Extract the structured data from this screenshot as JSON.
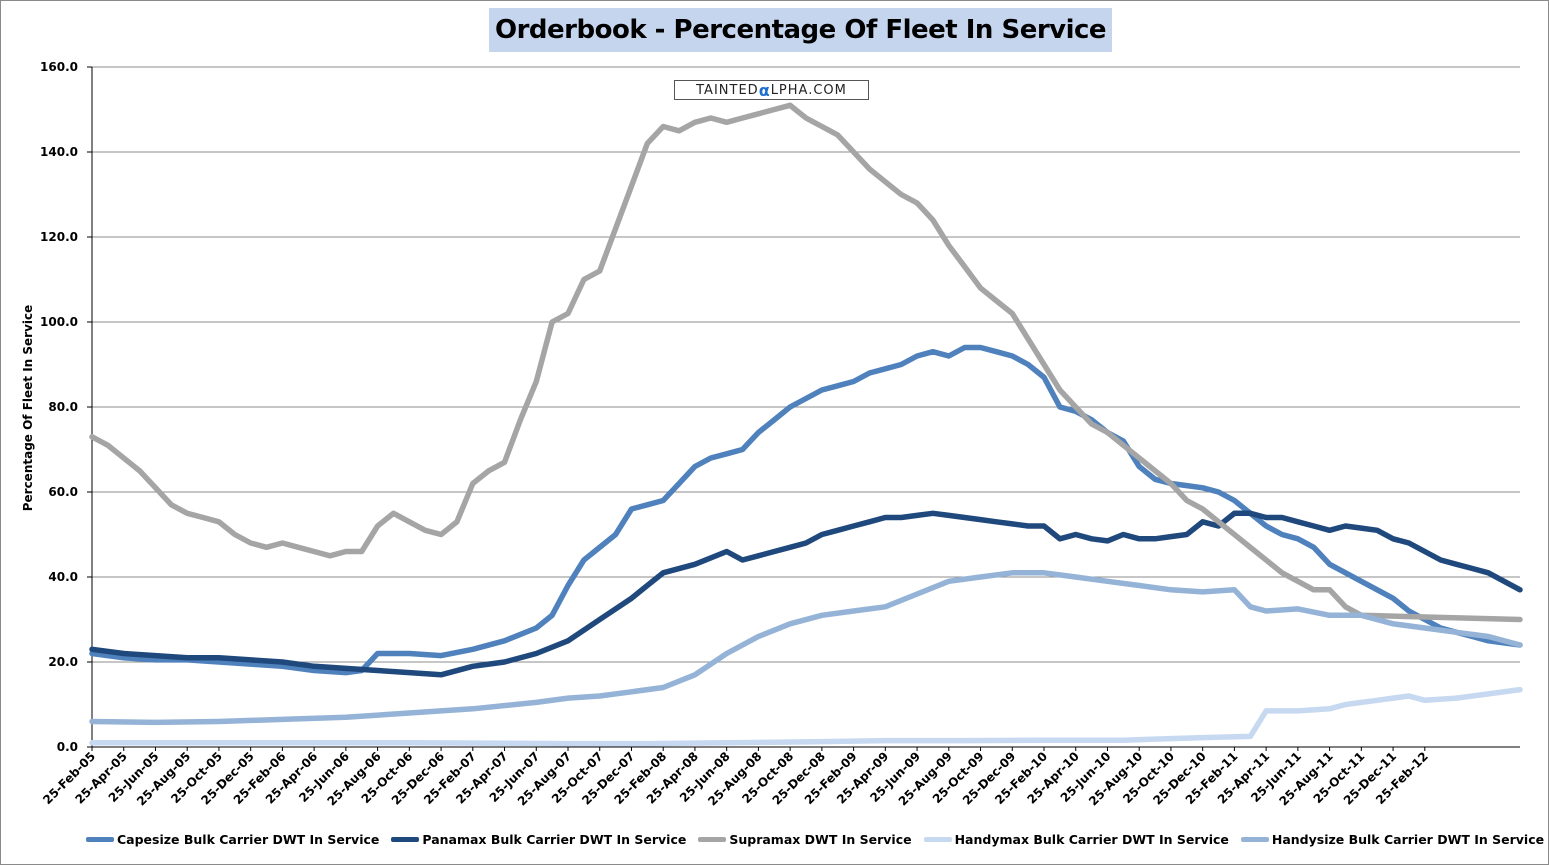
{
  "chart_data": {
    "type": "line",
    "title": "Orderbook - Percentage Of Fleet In Service",
    "watermark": "TAINTEDALPHA.COM",
    "xlabel": "",
    "ylabel": "Percentage Of Fleet In Service",
    "ylim": [
      0,
      160
    ],
    "yticks": [
      "0.0",
      "20.0",
      "40.0",
      "60.0",
      "80.0",
      "100.0",
      "120.0",
      "140.0",
      "160.0"
    ],
    "grid": true,
    "legend_position": "bottom",
    "x_ticks": [
      "25-Feb-05",
      "25-Apr-05",
      "25-Jun-05",
      "25-Aug-05",
      "25-Oct-05",
      "25-Dec-05",
      "25-Feb-06",
      "25-Apr-06",
      "25-Jun-06",
      "25-Aug-06",
      "25-Oct-06",
      "25-Dec-06",
      "25-Feb-07",
      "25-Apr-07",
      "25-Jun-07",
      "25-Aug-07",
      "25-Oct-07",
      "25-Dec-07",
      "25-Feb-08",
      "25-Apr-08",
      "25-Jun-08",
      "25-Aug-08",
      "25-Oct-08",
      "25-Dec-08",
      "25-Feb-09",
      "25-Apr-09",
      "25-Jun-09",
      "25-Aug-09",
      "25-Oct-09",
      "25-Dec-09",
      "25-Feb-10",
      "25-Apr-10",
      "25-Jun-10",
      "25-Aug-10",
      "25-Oct-10",
      "25-Dec-10",
      "25-Feb-11",
      "25-Apr-11",
      "25-Jun-11",
      "25-Aug-11",
      "25-Oct-11",
      "25-Dec-11",
      "25-Feb-12"
    ],
    "x_end_month": 86,
    "series": [
      {
        "name": "Capesize Bulk Carrier DWT In Service",
        "color": "#4f81bd",
        "points": [
          [
            0,
            22
          ],
          [
            2,
            21
          ],
          [
            4,
            20.5
          ],
          [
            6,
            20.5
          ],
          [
            8,
            20
          ],
          [
            10,
            19.5
          ],
          [
            12,
            19
          ],
          [
            14,
            18
          ],
          [
            16,
            17.5
          ],
          [
            17,
            18
          ],
          [
            18,
            22
          ],
          [
            20,
            22
          ],
          [
            22,
            21.5
          ],
          [
            24,
            23
          ],
          [
            26,
            25
          ],
          [
            28,
            28
          ],
          [
            29,
            31
          ],
          [
            30,
            38
          ],
          [
            31,
            44
          ],
          [
            32,
            47
          ],
          [
            33,
            50
          ],
          [
            34,
            56
          ],
          [
            35,
            57
          ],
          [
            36,
            58
          ],
          [
            37,
            62
          ],
          [
            38,
            66
          ],
          [
            39,
            68
          ],
          [
            40,
            69
          ],
          [
            41,
            70
          ],
          [
            42,
            74
          ],
          [
            43,
            77
          ],
          [
            44,
            80
          ],
          [
            45,
            82
          ],
          [
            46,
            84
          ],
          [
            47,
            85
          ],
          [
            48,
            86
          ],
          [
            49,
            88
          ],
          [
            50,
            89
          ],
          [
            51,
            90
          ],
          [
            52,
            92
          ],
          [
            53,
            93
          ],
          [
            54,
            92
          ],
          [
            55,
            94
          ],
          [
            56,
            94
          ],
          [
            57,
            93
          ],
          [
            58,
            92
          ],
          [
            59,
            90
          ],
          [
            60,
            87
          ],
          [
            61,
            80
          ],
          [
            62,
            79
          ],
          [
            63,
            77
          ],
          [
            64,
            74
          ],
          [
            65,
            72
          ],
          [
            66,
            66
          ],
          [
            67,
            63
          ],
          [
            68,
            62
          ],
          [
            69,
            61.5
          ],
          [
            70,
            61
          ],
          [
            71,
            60
          ],
          [
            72,
            58
          ],
          [
            73,
            55
          ],
          [
            74,
            52
          ],
          [
            75,
            50
          ],
          [
            76,
            49
          ],
          [
            77,
            47
          ],
          [
            78,
            43
          ],
          [
            79,
            41
          ],
          [
            80,
            39
          ],
          [
            81,
            37
          ],
          [
            82,
            35
          ],
          [
            83,
            32
          ],
          [
            84,
            30
          ],
          [
            85,
            28
          ],
          [
            86,
            27
          ],
          [
            87,
            26
          ],
          [
            88,
            25
          ],
          [
            89,
            24.5
          ],
          [
            90,
            24
          ]
        ]
      },
      {
        "name": "Panamax Bulk Carrier DWT In Service",
        "color": "#1f497d",
        "points": [
          [
            0,
            23
          ],
          [
            2,
            22
          ],
          [
            4,
            21.5
          ],
          [
            6,
            21
          ],
          [
            8,
            21
          ],
          [
            10,
            20.5
          ],
          [
            12,
            20
          ],
          [
            14,
            19
          ],
          [
            16,
            18.5
          ],
          [
            18,
            18
          ],
          [
            20,
            17.5
          ],
          [
            22,
            17
          ],
          [
            24,
            19
          ],
          [
            26,
            20
          ],
          [
            28,
            22
          ],
          [
            30,
            25
          ],
          [
            32,
            30
          ],
          [
            34,
            35
          ],
          [
            35,
            38
          ],
          [
            36,
            41
          ],
          [
            38,
            43
          ],
          [
            40,
            46
          ],
          [
            41,
            44
          ],
          [
            42,
            45
          ],
          [
            43,
            46
          ],
          [
            44,
            47
          ],
          [
            45,
            48
          ],
          [
            46,
            50
          ],
          [
            47,
            51
          ],
          [
            48,
            52
          ],
          [
            49,
            53
          ],
          [
            50,
            54
          ],
          [
            51,
            54
          ],
          [
            52,
            54.5
          ],
          [
            53,
            55
          ],
          [
            54,
            54.5
          ],
          [
            55,
            54
          ],
          [
            56,
            53.5
          ],
          [
            57,
            53
          ],
          [
            58,
            52.5
          ],
          [
            59,
            52
          ],
          [
            60,
            52
          ],
          [
            61,
            49
          ],
          [
            62,
            50
          ],
          [
            63,
            49
          ],
          [
            64,
            48.5
          ],
          [
            65,
            50
          ],
          [
            66,
            49
          ],
          [
            67,
            49
          ],
          [
            68,
            49.5
          ],
          [
            69,
            50
          ],
          [
            70,
            53
          ],
          [
            71,
            52
          ],
          [
            72,
            55
          ],
          [
            73,
            55
          ],
          [
            74,
            54
          ],
          [
            75,
            54
          ],
          [
            76,
            53
          ],
          [
            77,
            52
          ],
          [
            78,
            51
          ],
          [
            79,
            52
          ],
          [
            80,
            51.5
          ],
          [
            81,
            51
          ],
          [
            82,
            49
          ],
          [
            83,
            48
          ],
          [
            84,
            46
          ],
          [
            85,
            44
          ],
          [
            86,
            43
          ],
          [
            87,
            42
          ],
          [
            88,
            41
          ],
          [
            89,
            39
          ],
          [
            90,
            37
          ]
        ]
      },
      {
        "name": "Supramax DWT In Service",
        "color": "#a5a5a5",
        "points": [
          [
            0,
            73
          ],
          [
            1,
            71
          ],
          [
            2,
            68
          ],
          [
            3,
            65
          ],
          [
            4,
            61
          ],
          [
            5,
            57
          ],
          [
            6,
            55
          ],
          [
            7,
            54
          ],
          [
            8,
            53
          ],
          [
            9,
            50
          ],
          [
            10,
            48
          ],
          [
            11,
            47
          ],
          [
            12,
            48
          ],
          [
            13,
            47
          ],
          [
            14,
            46
          ],
          [
            15,
            45
          ],
          [
            16,
            46
          ],
          [
            17,
            46
          ],
          [
            18,
            52
          ],
          [
            19,
            55
          ],
          [
            20,
            53
          ],
          [
            21,
            51
          ],
          [
            22,
            50
          ],
          [
            23,
            53
          ],
          [
            24,
            62
          ],
          [
            25,
            65
          ],
          [
            26,
            67
          ],
          [
            27,
            77
          ],
          [
            28,
            86
          ],
          [
            29,
            100
          ],
          [
            30,
            102
          ],
          [
            31,
            110
          ],
          [
            32,
            112
          ],
          [
            33,
            122
          ],
          [
            34,
            132
          ],
          [
            35,
            142
          ],
          [
            36,
            146
          ],
          [
            37,
            145
          ],
          [
            38,
            147
          ],
          [
            39,
            148
          ],
          [
            40,
            147
          ],
          [
            41,
            148
          ],
          [
            42,
            149
          ],
          [
            43,
            150
          ],
          [
            44,
            151
          ],
          [
            45,
            148
          ],
          [
            46,
            146
          ],
          [
            47,
            144
          ],
          [
            48,
            140
          ],
          [
            49,
            136
          ],
          [
            50,
            133
          ],
          [
            51,
            130
          ],
          [
            52,
            128
          ],
          [
            53,
            124
          ],
          [
            54,
            118
          ],
          [
            55,
            113
          ],
          [
            56,
            108
          ],
          [
            57,
            105
          ],
          [
            58,
            102
          ],
          [
            59,
            96
          ],
          [
            60,
            90
          ],
          [
            61,
            84
          ],
          [
            62,
            80
          ],
          [
            63,
            76
          ],
          [
            64,
            74
          ],
          [
            65,
            71
          ],
          [
            66,
            68
          ],
          [
            67,
            65
          ],
          [
            68,
            62
          ],
          [
            69,
            58
          ],
          [
            70,
            56
          ],
          [
            71,
            53
          ],
          [
            72,
            50
          ],
          [
            73,
            47
          ],
          [
            74,
            44
          ],
          [
            75,
            41
          ],
          [
            76,
            39
          ],
          [
            77,
            37
          ],
          [
            78,
            37
          ],
          [
            79,
            33
          ],
          [
            80,
            31
          ],
          [
            90,
            30
          ]
        ]
      },
      {
        "name": "Handymax Bulk Carrier DWT In Service",
        "color": "#c6d9f1",
        "points": [
          [
            0,
            1
          ],
          [
            10,
            1
          ],
          [
            20,
            1
          ],
          [
            30,
            0.8
          ],
          [
            35,
            0.8
          ],
          [
            40,
            1
          ],
          [
            45,
            1.2
          ],
          [
            50,
            1.5
          ],
          [
            55,
            1.5
          ],
          [
            60,
            1.6
          ],
          [
            65,
            1.6
          ],
          [
            70,
            2.2
          ],
          [
            73,
            2.5
          ],
          [
            74,
            8.5
          ],
          [
            76,
            8.5
          ],
          [
            78,
            9
          ],
          [
            79,
            10
          ],
          [
            81,
            11
          ],
          [
            82,
            11.5
          ],
          [
            83,
            12
          ],
          [
            84,
            11
          ],
          [
            86,
            11.5
          ],
          [
            88,
            12.5
          ],
          [
            90,
            13.5
          ]
        ]
      },
      {
        "name": "Handysize Bulk Carrier DWT In Service",
        "color": "#95b3d7",
        "points": [
          [
            0,
            6
          ],
          [
            4,
            5.8
          ],
          [
            8,
            6
          ],
          [
            12,
            6.5
          ],
          [
            16,
            7
          ],
          [
            20,
            8
          ],
          [
            24,
            9
          ],
          [
            28,
            10.5
          ],
          [
            30,
            11.5
          ],
          [
            32,
            12
          ],
          [
            34,
            13
          ],
          [
            36,
            14
          ],
          [
            38,
            17
          ],
          [
            40,
            22
          ],
          [
            42,
            26
          ],
          [
            44,
            29
          ],
          [
            46,
            31
          ],
          [
            48,
            32
          ],
          [
            50,
            33
          ],
          [
            52,
            36
          ],
          [
            54,
            39
          ],
          [
            56,
            40
          ],
          [
            58,
            41
          ],
          [
            60,
            41
          ],
          [
            62,
            40
          ],
          [
            64,
            39
          ],
          [
            66,
            38
          ],
          [
            68,
            37
          ],
          [
            70,
            36.5
          ],
          [
            72,
            37
          ],
          [
            73,
            33
          ],
          [
            74,
            32
          ],
          [
            76,
            32.5
          ],
          [
            78,
            31
          ],
          [
            80,
            31
          ],
          [
            82,
            29
          ],
          [
            84,
            28
          ],
          [
            86,
            27
          ],
          [
            88,
            26
          ],
          [
            90,
            24
          ]
        ]
      }
    ]
  }
}
